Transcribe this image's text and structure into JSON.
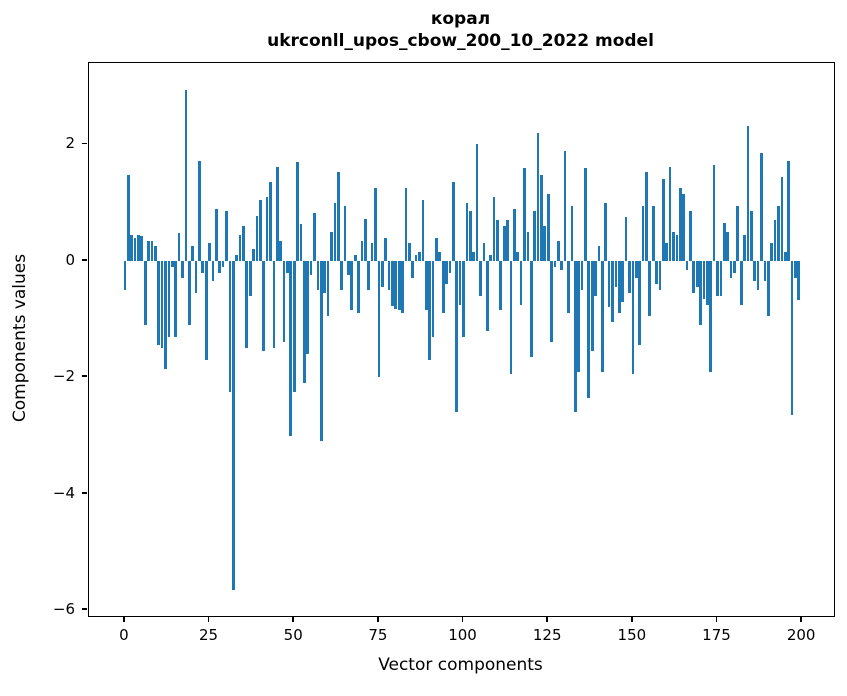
{
  "chart": {
    "title_line1": "корал",
    "title_line2": "ukrconll_upos_cbow_200_10_2022 model",
    "xlabel": "Vector components",
    "ylabel": "Components values"
  },
  "chart_data": {
    "type": "bar",
    "title": "корал\nukrconll_upos_cbow_200_10_2022 model",
    "xlabel": "Vector components",
    "ylabel": "Components values",
    "bar_color": "#1f77b4",
    "n_components": 200,
    "x_ticks": [
      0,
      25,
      50,
      75,
      100,
      125,
      150,
      175,
      200
    ],
    "y_ticks": [
      2,
      0,
      -2,
      -4,
      -6
    ],
    "xlim": [
      -10.6,
      209.4
    ],
    "ylim": [
      -6.1,
      3.4
    ],
    "grid": false,
    "legend": null,
    "values": [
      -0.5,
      1.48,
      0.45,
      0.4,
      0.45,
      0.42,
      -1.1,
      0.35,
      0.35,
      0.25,
      -1.45,
      -1.5,
      -1.85,
      -1.3,
      -0.1,
      -1.3,
      0.48,
      -0.3,
      2.93,
      -1.1,
      0.25,
      -0.55,
      1.72,
      -0.2,
      -1.7,
      0.3,
      -0.35,
      0.9,
      -0.2,
      -0.1,
      0.85,
      -2.25,
      -5.65,
      0.1,
      0.45,
      0.6,
      -1.5,
      -0.6,
      0.2,
      0.78,
      1.05,
      -1.55,
      1.1,
      1.35,
      -1.5,
      1.62,
      0.35,
      -1.4,
      -0.2,
      -3.0,
      -2.25,
      1.7,
      0.63,
      -2.1,
      -1.6,
      -0.25,
      0.82,
      -0.5,
      -3.1,
      -0.55,
      -0.95,
      0.5,
      1.0,
      1.52,
      -0.5,
      0.95,
      -0.25,
      -0.85,
      0.1,
      -0.9,
      0.35,
      0.72,
      -0.5,
      0.3,
      1.25,
      -2.0,
      -0.45,
      0.4,
      -0.5,
      -0.78,
      -0.83,
      -0.85,
      -0.9,
      1.25,
      0.3,
      -0.3,
      0.1,
      0.15,
      1.05,
      -0.85,
      -1.7,
      -1.3,
      0.4,
      0.15,
      -0.9,
      -0.4,
      -0.2,
      1.35,
      -2.6,
      -0.75,
      -1.3,
      1.0,
      0.85,
      0.15,
      2.0,
      -0.6,
      0.3,
      -1.2,
      0.1,
      1.1,
      0.7,
      -0.85,
      0.6,
      0.7,
      -1.95,
      0.9,
      0.15,
      -0.75,
      1.6,
      0.5,
      -1.65,
      0.85,
      2.2,
      1.48,
      0.6,
      1.15,
      -1.4,
      -0.1,
      0.35,
      -0.15,
      1.88,
      -0.9,
      0.95,
      -2.6,
      -1.9,
      -0.5,
      1.6,
      -2.35,
      -1.55,
      -0.6,
      0.25,
      -1.9,
      1.0,
      -0.8,
      -1.05,
      -0.45,
      -0.9,
      -0.7,
      0.75,
      -0.55,
      -1.95,
      -0.3,
      -1.45,
      0.95,
      1.52,
      -0.95,
      0.95,
      -0.4,
      -0.5,
      1.4,
      0.3,
      1.62,
      0.5,
      0.45,
      1.25,
      1.15,
      -0.15,
      0.85,
      -0.55,
      -0.45,
      -1.1,
      -0.65,
      -0.75,
      -1.9,
      1.65,
      -0.6,
      -0.6,
      0.65,
      0.5,
      -0.3,
      -0.2,
      0.95,
      -0.75,
      0.45,
      2.32,
      0.85,
      -0.35,
      -0.5,
      1.85,
      -0.35,
      -0.95,
      0.3,
      0.7,
      0.95,
      1.45,
      0.15,
      1.72,
      -2.65,
      -0.3,
      -0.68
    ]
  }
}
